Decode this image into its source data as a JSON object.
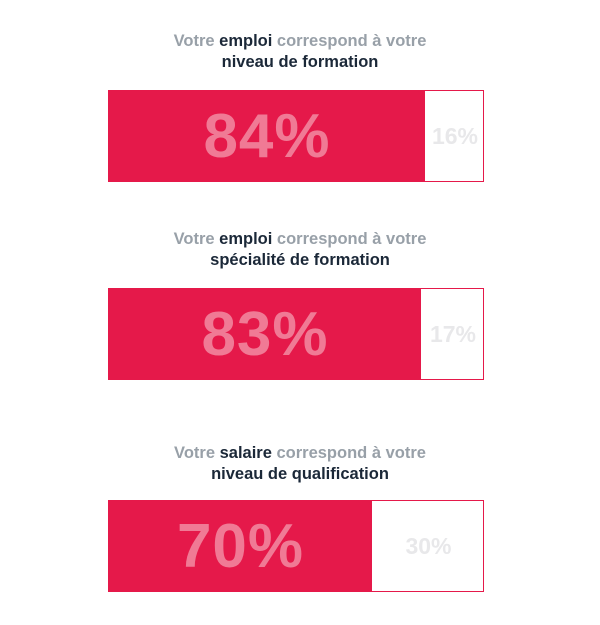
{
  "chart_data": [
    {
      "type": "bar",
      "title_parts": [
        {
          "text": "Votre ",
          "strong": false
        },
        {
          "text": "emploi",
          "strong": true
        },
        {
          "text": " correspond à votre",
          "strong": false
        },
        {
          "text": "niveau de formation",
          "strong": true,
          "newline": true
        }
      ],
      "value": 84,
      "value_label": "84%",
      "remainder_label": "16%"
    },
    {
      "type": "bar",
      "title_parts": [
        {
          "text": "Votre ",
          "strong": false
        },
        {
          "text": "emploi",
          "strong": true
        },
        {
          "text": " correspond à votre",
          "strong": false
        },
        {
          "text": "spécialité de formation",
          "strong": true,
          "newline": true
        }
      ],
      "value": 83,
      "value_label": "83%",
      "remainder_label": "17%"
    },
    {
      "type": "bar",
      "title_parts": [
        {
          "text": "Votre ",
          "strong": false
        },
        {
          "text": "salaire",
          "strong": true
        },
        {
          "text": " correspond à votre",
          "strong": false
        },
        {
          "text": "niveau de qualification",
          "strong": true,
          "newline": true
        }
      ],
      "value": 70,
      "value_label": "70%",
      "remainder_label": "30%"
    }
  ],
  "colors": {
    "accent": "#e5194a",
    "value_text": "#f07a95",
    "remainder_text": "#e8e8ea",
    "title_muted": "#98a0a8",
    "title_strong": "#1b2838"
  }
}
